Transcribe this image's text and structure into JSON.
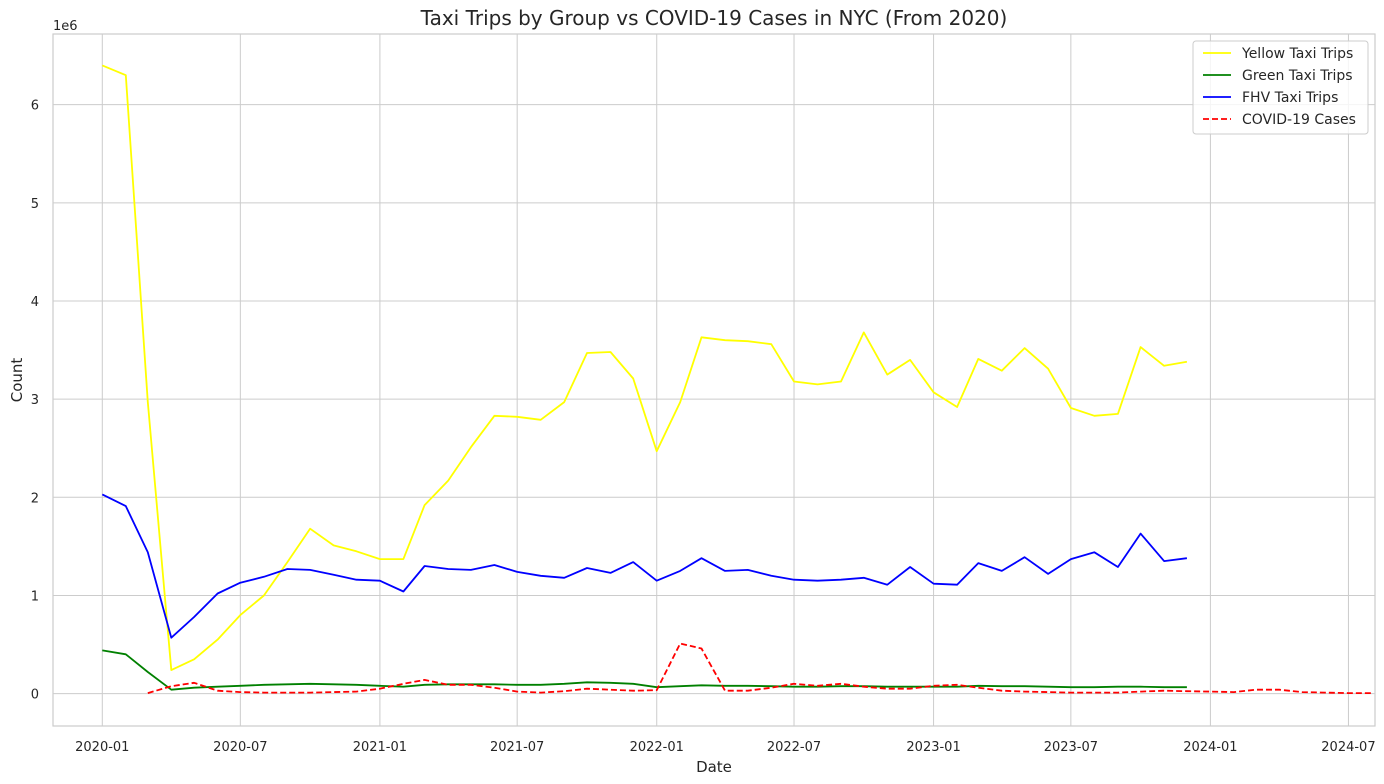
{
  "chart_data": {
    "type": "line",
    "title": "Taxi Trips by Group vs COVID-19 Cases in NYC (From 2020)",
    "xlabel": "Date",
    "ylabel": "Count",
    "y_scale_label": "1e6",
    "y_scale": 1000000,
    "xlim": [
      "2019-10-28",
      "2024-08-05"
    ],
    "ylim": [
      -0.33,
      6.72
    ],
    "x_ticks": [
      "2020-01",
      "2020-07",
      "2021-01",
      "2021-07",
      "2022-01",
      "2022-07",
      "2023-01",
      "2023-07",
      "2024-01",
      "2024-07"
    ],
    "y_ticks": [
      0,
      1,
      2,
      3,
      4,
      5,
      6
    ],
    "grid": true,
    "legend_position": "top-right",
    "series": [
      {
        "name": "Yellow Taxi Trips",
        "color": "#ffff00",
        "dash": "solid",
        "start": "2020-01",
        "values": [
          6.4,
          6.3,
          2.97,
          0.24,
          0.35,
          0.55,
          0.8,
          1.0,
          1.34,
          1.68,
          1.51,
          1.45,
          1.37,
          1.37,
          1.92,
          2.17,
          2.51,
          2.83,
          2.82,
          2.79,
          2.97,
          3.47,
          3.48,
          3.21,
          2.47,
          2.97,
          3.63,
          3.6,
          3.59,
          3.56,
          3.18,
          3.15,
          3.18,
          3.68,
          3.25,
          3.4,
          3.07,
          2.92,
          3.41,
          3.29,
          3.52,
          3.31,
          2.91,
          2.83,
          2.85,
          3.53,
          3.34,
          3.38
        ]
      },
      {
        "name": "Green Taxi Trips",
        "color": "#008000",
        "dash": "solid",
        "start": "2020-01",
        "values": [
          0.44,
          0.4,
          0.22,
          0.04,
          0.06,
          0.07,
          0.08,
          0.09,
          0.095,
          0.1,
          0.095,
          0.09,
          0.08,
          0.07,
          0.09,
          0.095,
          0.095,
          0.095,
          0.09,
          0.09,
          0.1,
          0.115,
          0.11,
          0.1,
          0.065,
          0.075,
          0.085,
          0.08,
          0.08,
          0.075,
          0.07,
          0.07,
          0.075,
          0.075,
          0.07,
          0.07,
          0.07,
          0.07,
          0.08,
          0.075,
          0.075,
          0.07,
          0.065,
          0.065,
          0.07,
          0.07,
          0.065,
          0.065
        ]
      },
      {
        "name": "FHV Taxi Trips",
        "color": "#0000ff",
        "dash": "solid",
        "start": "2020-01",
        "values": [
          2.03,
          1.91,
          1.44,
          0.57,
          0.78,
          1.02,
          1.13,
          1.19,
          1.27,
          1.26,
          1.21,
          1.16,
          1.15,
          1.04,
          1.3,
          1.27,
          1.26,
          1.31,
          1.24,
          1.2,
          1.18,
          1.28,
          1.23,
          1.34,
          1.15,
          1.25,
          1.38,
          1.25,
          1.26,
          1.2,
          1.16,
          1.15,
          1.16,
          1.18,
          1.11,
          1.29,
          1.12,
          1.11,
          1.33,
          1.25,
          1.39,
          1.22,
          1.37,
          1.44,
          1.29,
          1.63,
          1.35,
          1.38
        ]
      },
      {
        "name": "COVID-19 Cases",
        "color": "#ff0000",
        "dash": "dashed",
        "start": "2020-03",
        "values": [
          0.005,
          0.075,
          0.11,
          0.03,
          0.015,
          0.01,
          0.01,
          0.01,
          0.015,
          0.02,
          0.05,
          0.1,
          0.14,
          0.09,
          0.09,
          0.06,
          0.02,
          0.01,
          0.025,
          0.05,
          0.04,
          0.03,
          0.035,
          0.51,
          0.46,
          0.03,
          0.03,
          0.06,
          0.1,
          0.08,
          0.1,
          0.07,
          0.05,
          0.05,
          0.08,
          0.09,
          0.06,
          0.03,
          0.02,
          0.015,
          0.01,
          0.01,
          0.01,
          0.02,
          0.03,
          0.025,
          0.02,
          0.015,
          0.04,
          0.04,
          0.015,
          0.01,
          0.005,
          0.005
        ]
      }
    ]
  }
}
